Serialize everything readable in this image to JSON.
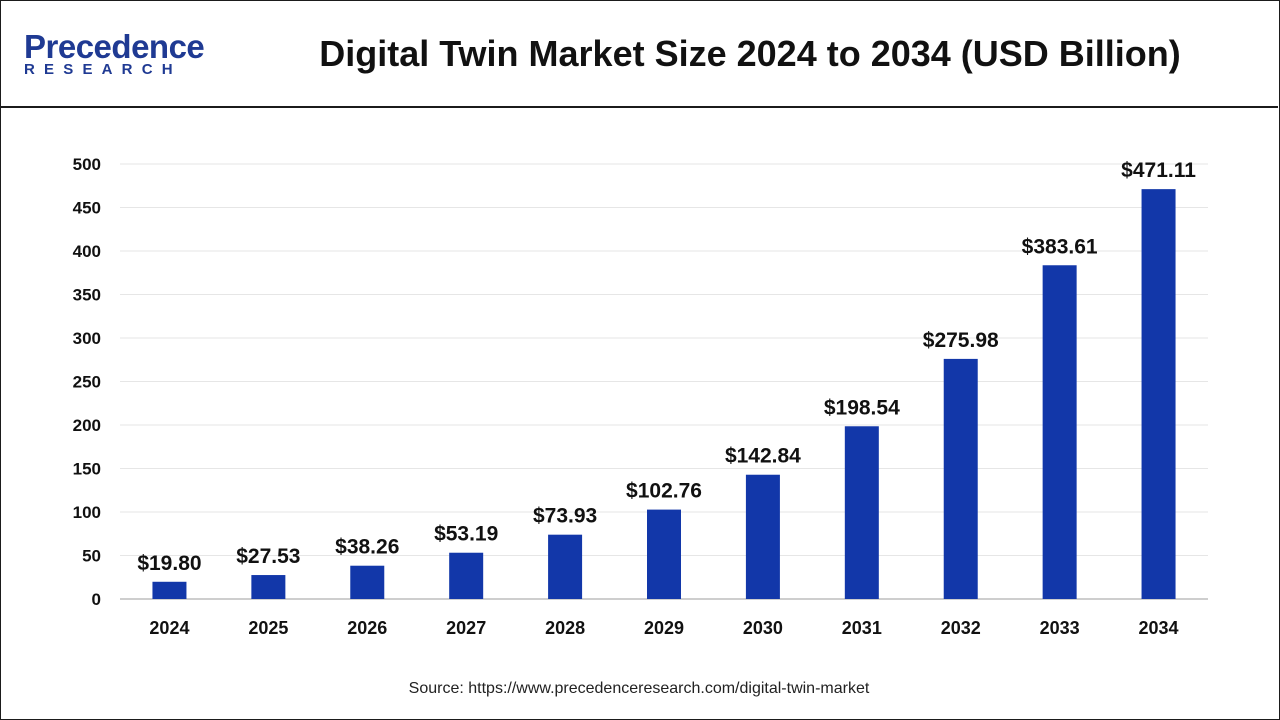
{
  "header": {
    "logo_main": "Precedence",
    "logo_sub": "RESEARCH",
    "title": "Digital Twin Market Size 2024 to 2034 (USD Billion)"
  },
  "source": "Source: https://www.precedenceresearch.com/digital-twin-market",
  "colors": {
    "bar": "#1237A9",
    "brand": "#1f3a93"
  },
  "chart_data": {
    "type": "bar",
    "title": "Digital Twin Market Size 2024 to 2034 (USD Billion)",
    "xlabel": "",
    "ylabel": "",
    "categories": [
      "2024",
      "2025",
      "2026",
      "2027",
      "2028",
      "2029",
      "2030",
      "2031",
      "2032",
      "2033",
      "2034"
    ],
    "values": [
      19.8,
      27.53,
      38.26,
      53.19,
      73.93,
      102.76,
      142.84,
      198.54,
      275.98,
      383.61,
      471.11
    ],
    "value_labels": [
      "$19.80",
      "$27.53",
      "$38.26",
      "$53.19",
      "$73.93",
      "$102.76",
      "$142.84",
      "$198.54",
      "$275.98",
      "$383.61",
      "$471.11"
    ],
    "ylim": [
      0,
      500
    ],
    "yticks": [
      0,
      50,
      100,
      150,
      200,
      250,
      300,
      350,
      400,
      450,
      500
    ],
    "grid": true,
    "legend": "none"
  }
}
